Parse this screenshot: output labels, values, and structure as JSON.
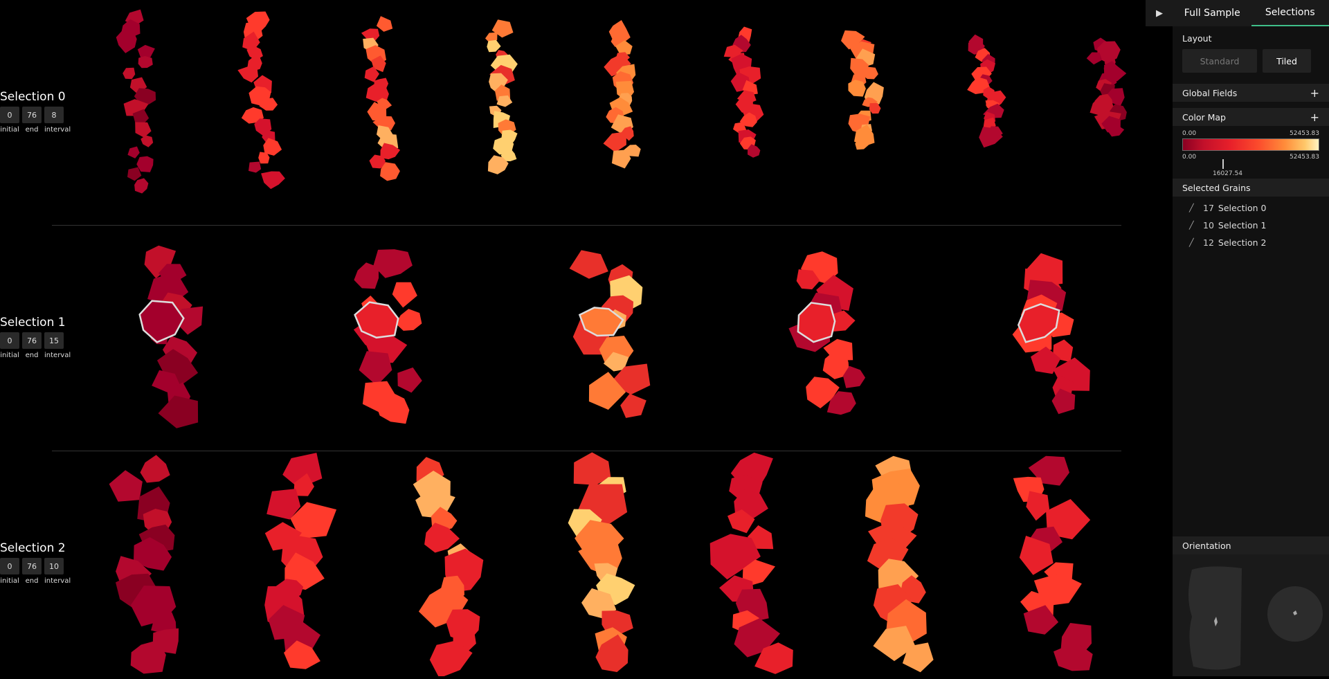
{
  "tabs": {
    "play": "▶",
    "full_sample": "Full Sample",
    "selections": "Selections"
  },
  "rows": [
    {
      "title": "Selection 0",
      "initial": "0",
      "end": "76",
      "interval": "8"
    },
    {
      "title": "Selection 1",
      "initial": "0",
      "end": "76",
      "interval": "15"
    },
    {
      "title": "Selection 2",
      "initial": "0",
      "end": "76",
      "interval": "10"
    }
  ],
  "ctrl_labels": {
    "initial": "initial",
    "end": "end",
    "interval": "interval"
  },
  "panel": {
    "layout": {
      "title": "Layout",
      "standard": "Standard",
      "tiled": "Tiled"
    },
    "global_fields": {
      "title": "Global Fields",
      "plus": "+"
    },
    "color_map": {
      "title": "Color Map",
      "plus": "+",
      "min_top": "0.00",
      "max_top": "52453.83",
      "min_bottom": "0.00",
      "max_bottom": "52453.83",
      "marker": "16027.54"
    },
    "selected_grains": {
      "title": "Selected Grains",
      "items": [
        {
          "count": "17",
          "name": "Selection 0"
        },
        {
          "count": "10",
          "name": "Selection 1"
        },
        {
          "count": "12",
          "name": "Selection 2"
        }
      ]
    },
    "orientation": {
      "title": "Orientation"
    }
  },
  "colors": {
    "accent": "#3fbf8a",
    "dark_red": "#a3002c",
    "red": "#e8202a",
    "orange": "#ff7a36",
    "light_orange": "#ffb060",
    "yellow": "#ffd070"
  }
}
